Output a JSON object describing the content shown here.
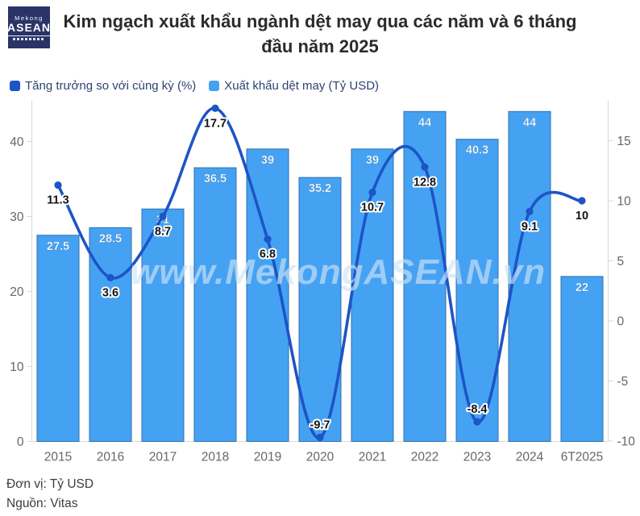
{
  "header": {
    "logo": {
      "line1": "Mekong",
      "line2": "ASEAN"
    },
    "title": "Kim ngạch xuất khẩu ngành dệt may qua các năm và 6 tháng đầu năm 2025"
  },
  "legend": [
    {
      "label": "Tăng trưởng so với cùng kỳ (%)",
      "color": "#1D54C6",
      "type": "line"
    },
    {
      "label": "Xuất khẩu dệt may (Tỷ USD)",
      "color": "#45A2F2",
      "type": "bar"
    }
  ],
  "chart_data": {
    "type": "bar",
    "subtype": "bar-line-combo",
    "title": "Kim ngạch xuất khẩu ngành dệt may qua các năm và 6 tháng đầu năm 2025",
    "categories": [
      "2015",
      "2016",
      "2017",
      "2018",
      "2019",
      "2020",
      "2021",
      "2022",
      "2023",
      "2024",
      "6T2025"
    ],
    "series": [
      {
        "name": "Xuất khẩu dệt may (Tỷ USD)",
        "type": "bar",
        "axis": "left",
        "color": "#45A2F2",
        "border_color": "#2E6FAE",
        "values": [
          27.5,
          28.5,
          31,
          36.5,
          39,
          35.2,
          39,
          44,
          40.3,
          44,
          22
        ]
      },
      {
        "name": "Tăng trưởng so với cùng kỳ (%)",
        "type": "line",
        "axis": "right",
        "color": "#1D54C6",
        "values": [
          11.3,
          3.6,
          8.7,
          17.7,
          6.8,
          -9.7,
          10.7,
          12.8,
          -8.4,
          9.1,
          10
        ]
      }
    ],
    "left_axis": {
      "ticks": [
        0,
        10,
        20,
        30,
        40
      ],
      "range": [
        0,
        45.4
      ],
      "label_color": "#666666"
    },
    "right_axis": {
      "ticks": [
        -10,
        -5,
        0,
        5,
        10,
        15
      ],
      "range": [
        -10,
        18.3
      ],
      "label_color": "#666666"
    },
    "grid": false,
    "legend_position": "top-left",
    "axis_line_color": "#d9d9d9",
    "bar_label_color": "#ffffff",
    "line_label_color": "#141414"
  },
  "watermark": "www.MekongASEAN.vn",
  "footer": {
    "unit": "Đơn vị: Tỷ USD",
    "source": "Nguồn: Vitas"
  }
}
